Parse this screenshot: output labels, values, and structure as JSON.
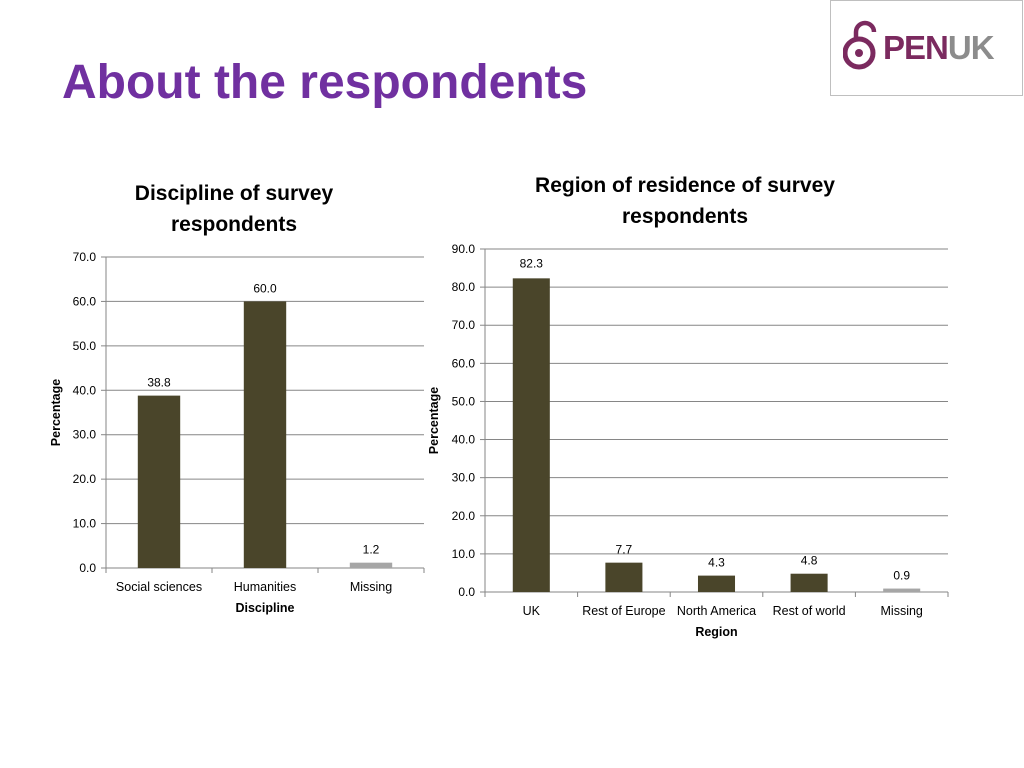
{
  "slide": {
    "title": "About the respondents"
  },
  "logo": {
    "icon": "padlock-icon",
    "text_open": "PEN",
    "text_uk": "UK",
    "color_primary": "#7b2a5f",
    "color_secondary": "#8c8c8c"
  },
  "colors": {
    "bar": "#4a452a",
    "bar_missing": "#a6a6a6",
    "grid": "#868686",
    "title": "#7030a0"
  },
  "chart_data": [
    {
      "type": "bar",
      "title": "Discipline of survey\nrespondents",
      "xlabel": "Discipline",
      "ylabel": "Percentage",
      "categories": [
        "Social sciences",
        "Humanities",
        "Missing"
      ],
      "values": [
        38.8,
        60.0,
        1.2
      ],
      "value_labels": [
        "38.8",
        "60.0",
        "1.2"
      ],
      "ylim": [
        0,
        70
      ],
      "yticks": [
        "0.0",
        "10.0",
        "20.0",
        "30.0",
        "40.0",
        "50.0",
        "60.0",
        "70.0"
      ],
      "grid": true,
      "legend": "none"
    },
    {
      "type": "bar",
      "title": "Region of residence of survey\nrespondents",
      "xlabel": "Region",
      "ylabel": "Percentage",
      "categories": [
        "UK",
        "Rest of Europe",
        "North America",
        "Rest of world",
        "Missing"
      ],
      "values": [
        82.3,
        7.7,
        4.3,
        4.8,
        0.9
      ],
      "value_labels": [
        "82.3",
        "7.7",
        "4.3",
        "4.8",
        "0.9"
      ],
      "ylim": [
        0,
        90
      ],
      "yticks": [
        "0.0",
        "10.0",
        "20.0",
        "30.0",
        "40.0",
        "50.0",
        "60.0",
        "70.0",
        "80.0",
        "90.0"
      ],
      "grid": true,
      "legend": "none"
    }
  ]
}
